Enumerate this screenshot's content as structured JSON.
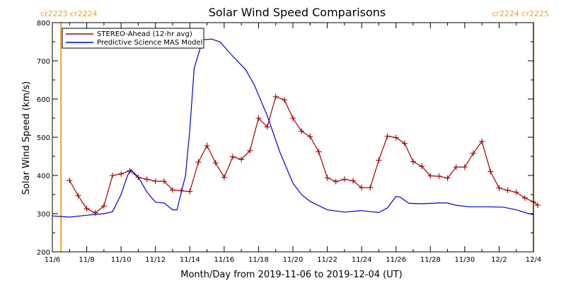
{
  "chart_data": {
    "type": "line",
    "title": "Solar Wind Speed Comparisons",
    "xlabel": "Month/Day from 2019-11-06 to 2019-12-04 (UT)",
    "ylabel": "Solar Wind Speed (km/s)",
    "xlim": [
      "2019-11-06",
      "2019-12-04"
    ],
    "ylim": [
      200,
      800
    ],
    "grid": false,
    "legend_position": "top-left",
    "x_tick_labels": [
      "11/6",
      "11/8",
      "11/10",
      "11/12",
      "11/14",
      "11/16",
      "11/18",
      "11/20",
      "11/22",
      "11/24",
      "11/26",
      "11/28",
      "11/30",
      "12/2",
      "12/4"
    ],
    "y_tick_labels": [
      "200",
      "300",
      "400",
      "500",
      "600",
      "700",
      "800"
    ],
    "carrington_markers": [
      {
        "label": "cr2223 cr2224",
        "date": "2019-11-06T12:00",
        "color": "#f0a030"
      },
      {
        "label": "cr2224 cr2225",
        "date": "2019-12-04T00:00",
        "color": "#f0a030"
      }
    ],
    "series": [
      {
        "name": "STEREO-Ahead (12-hr avg)",
        "color": "#a00000",
        "marker": "plus",
        "points": [
          [
            "2019-11-07T00:00",
            387
          ],
          [
            "2019-11-07T12:00",
            347
          ],
          [
            "2019-11-08T00:00",
            313
          ],
          [
            "2019-11-08T12:00",
            302
          ],
          [
            "2019-11-09T00:00",
            320
          ],
          [
            "2019-11-09T12:00",
            400
          ],
          [
            "2019-11-10T00:00",
            404
          ],
          [
            "2019-11-10T12:00",
            412
          ],
          [
            "2019-11-11T00:00",
            395
          ],
          [
            "2019-11-11T12:00",
            390
          ],
          [
            "2019-11-12T00:00",
            385
          ],
          [
            "2019-11-12T12:00",
            385
          ],
          [
            "2019-11-13T00:00",
            362
          ],
          [
            "2019-11-13T12:00",
            360
          ],
          [
            "2019-11-14T00:00",
            358
          ],
          [
            "2019-11-14T12:00",
            435
          ],
          [
            "2019-11-15T00:00",
            478
          ],
          [
            "2019-11-15T12:00",
            433
          ],
          [
            "2019-11-16T00:00",
            395
          ],
          [
            "2019-11-16T12:00",
            449
          ],
          [
            "2019-11-17T00:00",
            442
          ],
          [
            "2019-11-17T12:00",
            465
          ],
          [
            "2019-11-18T00:00",
            550
          ],
          [
            "2019-11-18T12:00",
            527
          ],
          [
            "2019-11-19T00:00",
            606
          ],
          [
            "2019-11-19T12:00",
            598
          ],
          [
            "2019-11-20T00:00",
            550
          ],
          [
            "2019-11-20T12:00",
            516
          ],
          [
            "2019-11-21T00:00",
            502
          ],
          [
            "2019-11-21T12:00",
            462
          ],
          [
            "2019-11-22T00:00",
            394
          ],
          [
            "2019-11-22T12:00",
            384
          ],
          [
            "2019-11-23T00:00",
            390
          ],
          [
            "2019-11-23T12:00",
            386
          ],
          [
            "2019-11-24T00:00",
            368
          ],
          [
            "2019-11-24T12:00",
            368
          ],
          [
            "2019-11-25T00:00",
            440
          ],
          [
            "2019-11-25T12:00",
            503
          ],
          [
            "2019-11-26T00:00",
            499
          ],
          [
            "2019-11-26T12:00",
            484
          ],
          [
            "2019-11-27T00:00",
            436
          ],
          [
            "2019-11-27T12:00",
            424
          ],
          [
            "2019-11-28T00:00",
            399
          ],
          [
            "2019-11-28T12:00",
            398
          ],
          [
            "2019-11-29T00:00",
            393
          ],
          [
            "2019-11-29T12:00",
            422
          ],
          [
            "2019-11-30T00:00",
            422
          ],
          [
            "2019-11-30T12:00",
            458
          ],
          [
            "2019-12-01T00:00",
            489
          ],
          [
            "2019-12-01T12:00",
            410
          ],
          [
            "2019-12-02T00:00",
            367
          ],
          [
            "2019-12-02T12:00",
            361
          ],
          [
            "2019-12-03T00:00",
            356
          ],
          [
            "2019-12-03T12:00",
            341
          ],
          [
            "2019-12-04T00:00",
            331
          ],
          [
            "2019-12-04T06:00",
            322
          ]
        ]
      },
      {
        "name": "Predictive Science MAS Model",
        "color": "#0000cc",
        "marker": "none",
        "points": [
          [
            "2019-11-06T00:00",
            294
          ],
          [
            "2019-11-07T00:00",
            291
          ],
          [
            "2019-11-08T00:00",
            296
          ],
          [
            "2019-11-09T00:00",
            300
          ],
          [
            "2019-11-09T12:00",
            305
          ],
          [
            "2019-11-10T00:00",
            350
          ],
          [
            "2019-11-10T09:00",
            400
          ],
          [
            "2019-11-10T14:00",
            415
          ],
          [
            "2019-11-11T00:00",
            396
          ],
          [
            "2019-11-11T12:00",
            357
          ],
          [
            "2019-11-12T00:00",
            330
          ],
          [
            "2019-11-12T12:00",
            328
          ],
          [
            "2019-11-13T00:00",
            310
          ],
          [
            "2019-11-13T06:00",
            310
          ],
          [
            "2019-11-13T18:00",
            400
          ],
          [
            "2019-11-14T00:00",
            520
          ],
          [
            "2019-11-14T06:00",
            680
          ],
          [
            "2019-11-14T18:00",
            755
          ],
          [
            "2019-11-15T06:00",
            757
          ],
          [
            "2019-11-15T18:00",
            750
          ],
          [
            "2019-11-16T12:00",
            712
          ],
          [
            "2019-11-17T06:00",
            677
          ],
          [
            "2019-11-17T18:00",
            637
          ],
          [
            "2019-11-18T12:00",
            557
          ],
          [
            "2019-11-19T06:00",
            460
          ],
          [
            "2019-11-20T00:00",
            380
          ],
          [
            "2019-11-20T12:00",
            350
          ],
          [
            "2019-11-21T00:00",
            332
          ],
          [
            "2019-11-22T00:00",
            310
          ],
          [
            "2019-11-23T00:00",
            304
          ],
          [
            "2019-11-24T00:00",
            308
          ],
          [
            "2019-11-25T00:00",
            303
          ],
          [
            "2019-11-25T12:00",
            315
          ],
          [
            "2019-11-26T00:00",
            345
          ],
          [
            "2019-11-26T06:00",
            343
          ],
          [
            "2019-11-26T18:00",
            327
          ],
          [
            "2019-11-27T12:00",
            326
          ],
          [
            "2019-11-28T12:00",
            328
          ],
          [
            "2019-11-29T00:00",
            328
          ],
          [
            "2019-11-29T12:00",
            322
          ],
          [
            "2019-11-30T06:00",
            318
          ],
          [
            "2019-12-01T06:00",
            318
          ],
          [
            "2019-12-02T06:00",
            317
          ],
          [
            "2019-12-03T00:00",
            310
          ],
          [
            "2019-12-03T12:00",
            303
          ],
          [
            "2019-12-04T00:00",
            297
          ]
        ]
      }
    ]
  }
}
